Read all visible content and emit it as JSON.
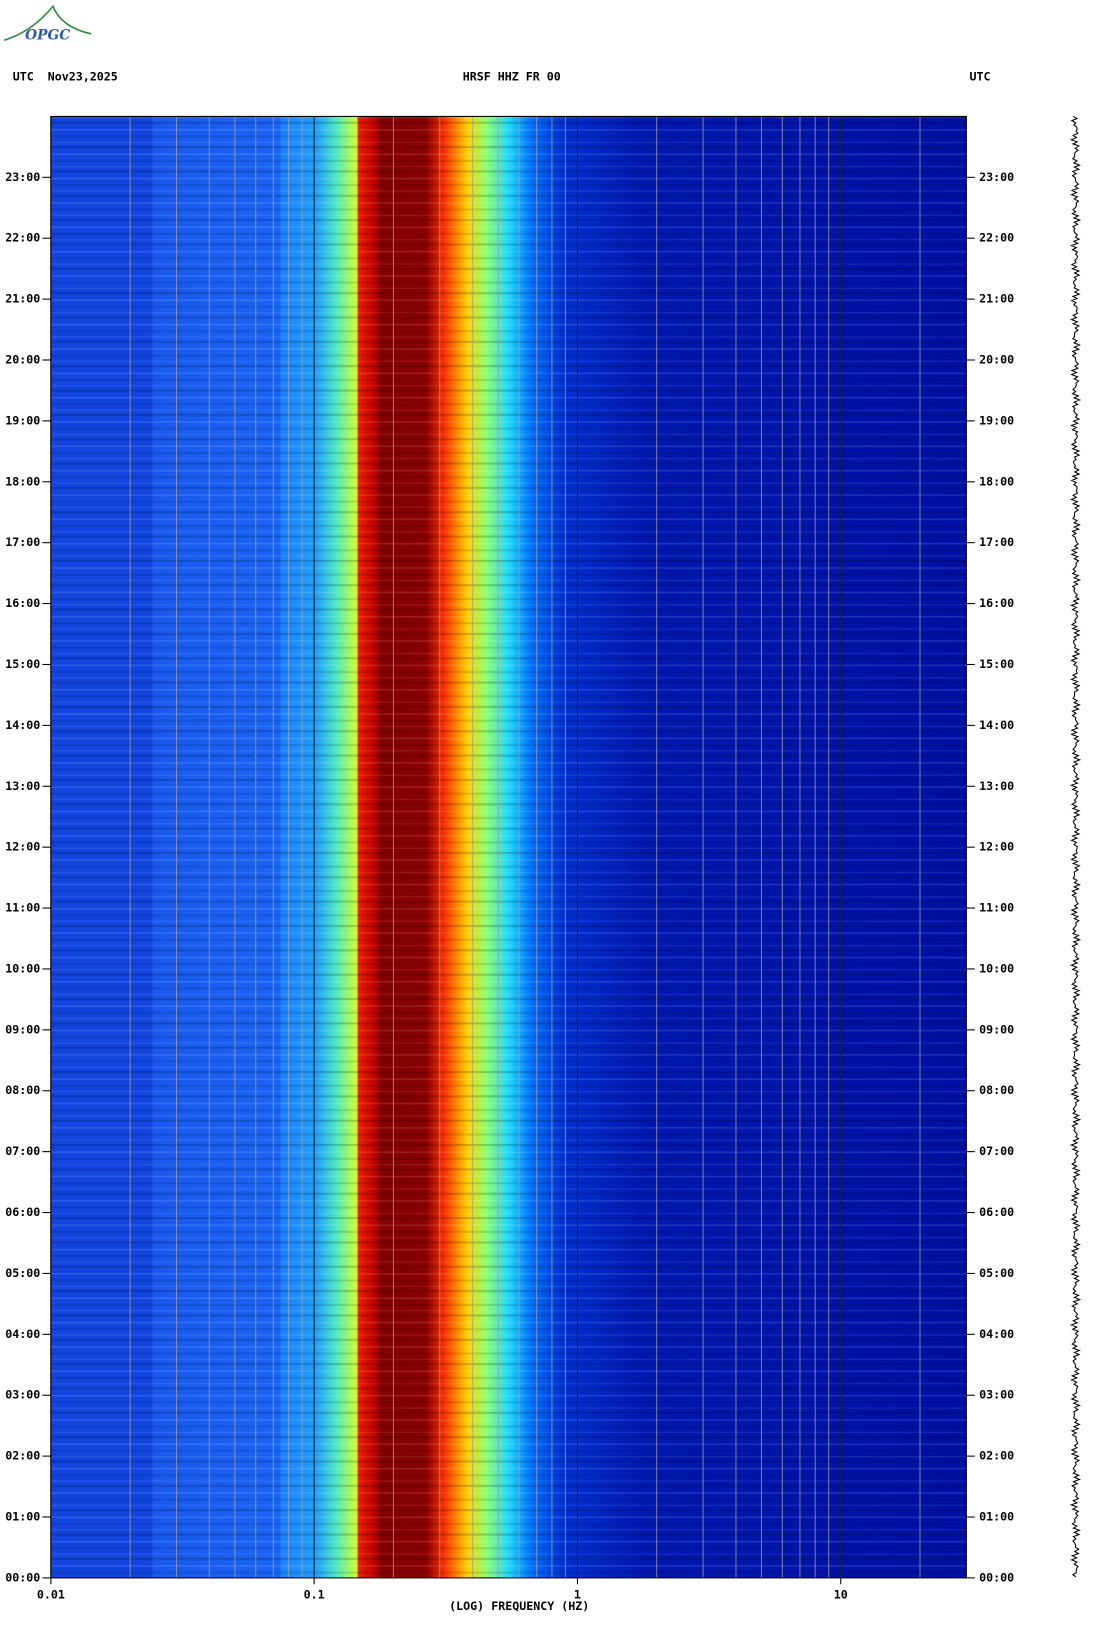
{
  "chart_data": {
    "type": "spectrogram",
    "logo": "OPGC",
    "header_left": "UTC  Nov23,2025",
    "title": "HRSF HHZ FR 00",
    "header_right": "UTC",
    "x_label": "(LOG) FREQUENCY (HZ)",
    "x_log": true,
    "xlim": [
      0.01,
      30
    ],
    "xticks": [
      0.01,
      0.1,
      1,
      10
    ],
    "xminorticks": [
      0.02,
      0.03,
      0.04,
      0.05,
      0.06,
      0.07,
      0.08,
      0.09,
      0.2,
      0.3,
      0.4,
      0.5,
      0.6,
      0.7,
      0.8,
      0.9,
      2,
      3,
      4,
      5,
      6,
      7,
      8,
      9,
      20
    ],
    "ylim": [
      0,
      24
    ],
    "yticks": [
      {
        "value": 0,
        "label": "00:00"
      },
      {
        "value": 1,
        "label": "01:00"
      },
      {
        "value": 2,
        "label": "02:00"
      },
      {
        "value": 3,
        "label": "03:00"
      },
      {
        "value": 4,
        "label": "04:00"
      },
      {
        "value": 5,
        "label": "05:00"
      },
      {
        "value": 6,
        "label": "06:00"
      },
      {
        "value": 7,
        "label": "07:00"
      },
      {
        "value": 8,
        "label": "08:00"
      },
      {
        "value": 9,
        "label": "09:00"
      },
      {
        "value": 10,
        "label": "10:00"
      },
      {
        "value": 11,
        "label": "11:00"
      },
      {
        "value": 12,
        "label": "12:00"
      },
      {
        "value": 13,
        "label": "13:00"
      },
      {
        "value": 14,
        "label": "14:00"
      },
      {
        "value": 15,
        "label": "15:00"
      },
      {
        "value": 16,
        "label": "16:00"
      },
      {
        "value": 17,
        "label": "17:00"
      },
      {
        "value": 18,
        "label": "18:00"
      },
      {
        "value": 19,
        "label": "19:00"
      },
      {
        "value": 20,
        "label": "20:00"
      },
      {
        "value": 21,
        "label": "21:00"
      },
      {
        "value": 22,
        "label": "22:00"
      },
      {
        "value": 23,
        "label": "23:00"
      }
    ]
  }
}
